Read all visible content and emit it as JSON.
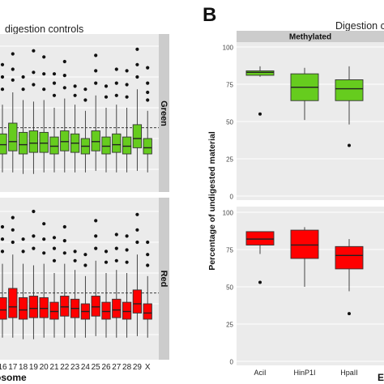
{
  "panel_letter": "B",
  "left_title": "digestion controls",
  "right_title": "Digestion c",
  "left_xlabel": "osome",
  "right_ylabel": "Percentage of undigested material",
  "right_xlabel_partial": "E",
  "chart_data": [
    {
      "type": "boxplot",
      "title": "digestion controls",
      "xlabel": "osome",
      "categories": [
        "16",
        "17",
        "18",
        "19",
        "20",
        "21",
        "22",
        "23",
        "24",
        "25",
        "26",
        "27",
        "28",
        "29",
        "X"
      ],
      "facets": [
        {
          "name": "Green",
          "color": "#66cc1e",
          "reference_line": 0.37,
          "boxes": [
            {
              "q1": 0.2,
              "median": 0.26,
              "q3": 0.33,
              "whisker_low": 0.08,
              "whisker_high": 0.52,
              "outliers": [
                0.62,
                0.7,
                0.78
              ]
            },
            {
              "q1": 0.22,
              "median": 0.28,
              "q3": 0.4,
              "whisker_low": 0.08,
              "whisker_high": 0.6,
              "outliers": [
                0.68,
                0.75,
                0.85
              ]
            },
            {
              "q1": 0.2,
              "median": 0.26,
              "q3": 0.34,
              "whisker_low": 0.07,
              "whisker_high": 0.55,
              "outliers": [
                0.62,
                0.7
              ]
            },
            {
              "q1": 0.21,
              "median": 0.27,
              "q3": 0.35,
              "whisker_low": 0.07,
              "whisker_high": 0.54,
              "outliers": [
                0.65,
                0.73,
                0.87
              ]
            },
            {
              "q1": 0.21,
              "median": 0.27,
              "q3": 0.34,
              "whisker_low": 0.08,
              "whisker_high": 0.55,
              "outliers": [
                0.62,
                0.72,
                0.83
              ]
            },
            {
              "q1": 0.2,
              "median": 0.25,
              "q3": 0.31,
              "whisker_low": 0.08,
              "whisker_high": 0.5,
              "outliers": [
                0.58,
                0.66,
                0.72
              ]
            },
            {
              "q1": 0.22,
              "median": 0.28,
              "q3": 0.35,
              "whisker_low": 0.08,
              "whisker_high": 0.56,
              "outliers": [
                0.63,
                0.71,
                0.8
              ]
            },
            {
              "q1": 0.21,
              "median": 0.27,
              "q3": 0.33,
              "whisker_low": 0.08,
              "whisker_high": 0.52,
              "outliers": [
                0.58,
                0.64
              ]
            },
            {
              "q1": 0.2,
              "median": 0.25,
              "q3": 0.3,
              "whisker_low": 0.08,
              "whisker_high": 0.48,
              "outliers": [
                0.55,
                0.62
              ]
            },
            {
              "q1": 0.22,
              "median": 0.28,
              "q3": 0.35,
              "whisker_low": 0.09,
              "whisker_high": 0.58,
              "outliers": [
                0.66,
                0.74,
                0.84
              ]
            },
            {
              "q1": 0.2,
              "median": 0.25,
              "q3": 0.31,
              "whisker_low": 0.08,
              "whisker_high": 0.5,
              "outliers": [
                0.57,
                0.64
              ]
            },
            {
              "q1": 0.21,
              "median": 0.26,
              "q3": 0.33,
              "whisker_low": 0.08,
              "whisker_high": 0.52,
              "outliers": [
                0.58,
                0.66,
                0.75
              ]
            },
            {
              "q1": 0.2,
              "median": 0.25,
              "q3": 0.31,
              "whisker_low": 0.08,
              "whisker_high": 0.5,
              "outliers": [
                0.57,
                0.65,
                0.74
              ]
            },
            {
              "q1": 0.24,
              "median": 0.3,
              "q3": 0.39,
              "whisker_low": 0.09,
              "whisker_high": 0.62,
              "outliers": [
                0.7,
                0.78,
                0.88
              ]
            },
            {
              "q1": 0.2,
              "median": 0.24,
              "q3": 0.3,
              "whisker_low": 0.08,
              "whisker_high": 0.48,
              "outliers": [
                0.55,
                0.6,
                0.66,
                0.76
              ]
            }
          ]
        },
        {
          "name": "Red",
          "color": "#ff0000",
          "reference_line": 0.37,
          "boxes": [
            {
              "q1": 0.2,
              "median": 0.26,
              "q3": 0.34,
              "whisker_low": 0.08,
              "whisker_high": 0.56,
              "outliers": [
                0.64,
                0.72,
                0.8
              ]
            },
            {
              "q1": 0.21,
              "median": 0.28,
              "q3": 0.4,
              "whisker_low": 0.08,
              "whisker_high": 0.62,
              "outliers": [
                0.7,
                0.78,
                0.86
              ]
            },
            {
              "q1": 0.2,
              "median": 0.26,
              "q3": 0.34,
              "whisker_low": 0.07,
              "whisker_high": 0.56,
              "outliers": [
                0.64,
                0.72
              ]
            },
            {
              "q1": 0.21,
              "median": 0.27,
              "q3": 0.35,
              "whisker_low": 0.07,
              "whisker_high": 0.55,
              "outliers": [
                0.66,
                0.74,
                0.9
              ]
            },
            {
              "q1": 0.21,
              "median": 0.27,
              "q3": 0.34,
              "whisker_low": 0.08,
              "whisker_high": 0.56,
              "outliers": [
                0.63,
                0.72,
                0.82
              ]
            },
            {
              "q1": 0.2,
              "median": 0.25,
              "q3": 0.31,
              "whisker_low": 0.08,
              "whisker_high": 0.5,
              "outliers": [
                0.58,
                0.66,
                0.73
              ]
            },
            {
              "q1": 0.22,
              "median": 0.28,
              "q3": 0.35,
              "whisker_low": 0.08,
              "whisker_high": 0.56,
              "outliers": [
                0.63,
                0.71,
                0.8
              ]
            },
            {
              "q1": 0.21,
              "median": 0.27,
              "q3": 0.33,
              "whisker_low": 0.08,
              "whisker_high": 0.52,
              "outliers": [
                0.58,
                0.64
              ]
            },
            {
              "q1": 0.2,
              "median": 0.25,
              "q3": 0.3,
              "whisker_low": 0.08,
              "whisker_high": 0.48,
              "outliers": [
                0.55,
                0.62
              ]
            },
            {
              "q1": 0.22,
              "median": 0.28,
              "q3": 0.35,
              "whisker_low": 0.09,
              "whisker_high": 0.58,
              "outliers": [
                0.66,
                0.74,
                0.84
              ]
            },
            {
              "q1": 0.2,
              "median": 0.25,
              "q3": 0.31,
              "whisker_low": 0.08,
              "whisker_high": 0.5,
              "outliers": [
                0.57,
                0.64
              ]
            },
            {
              "q1": 0.21,
              "median": 0.26,
              "q3": 0.33,
              "whisker_low": 0.08,
              "whisker_high": 0.52,
              "outliers": [
                0.58,
                0.66,
                0.75
              ]
            },
            {
              "q1": 0.2,
              "median": 0.25,
              "q3": 0.31,
              "whisker_low": 0.08,
              "whisker_high": 0.5,
              "outliers": [
                0.57,
                0.65,
                0.74
              ]
            },
            {
              "q1": 0.24,
              "median": 0.3,
              "q3": 0.39,
              "whisker_low": 0.09,
              "whisker_high": 0.62,
              "outliers": [
                0.7,
                0.78,
                0.88
              ]
            },
            {
              "q1": 0.2,
              "median": 0.24,
              "q3": 0.3,
              "whisker_low": 0.08,
              "whisker_high": 0.48,
              "outliers": [
                0.55,
                0.62,
                0.7
              ]
            }
          ]
        }
      ]
    },
    {
      "type": "boxplot",
      "title": "Digestion c",
      "ylabel": "Percentage of undigested material",
      "xlabel": "E",
      "ylim": [
        0,
        100
      ],
      "yticks": [
        0,
        25,
        50,
        75,
        100
      ],
      "categories": [
        "AciI",
        "HinP1I",
        "HpaII"
      ],
      "facets": [
        {
          "name": "Methylated",
          "color": "#66cc1e",
          "boxes": [
            {
              "q1": 81,
              "median": 83,
              "q3": 84,
              "whisker_low": 80,
              "whisker_high": 87,
              "outliers": [
                55
              ]
            },
            {
              "q1": 64,
              "median": 73,
              "q3": 82,
              "whisker_low": 51,
              "whisker_high": 86,
              "outliers": []
            },
            {
              "q1": 64,
              "median": 72,
              "q3": 78,
              "whisker_low": 48,
              "whisker_high": 87,
              "outliers": [
                34
              ]
            }
          ]
        },
        {
          "name": "",
          "color": "#ff0000",
          "boxes": [
            {
              "q1": 78,
              "median": 82,
              "q3": 87,
              "whisker_low": 72,
              "whisker_high": 87,
              "outliers": [
                53
              ]
            },
            {
              "q1": 69,
              "median": 78,
              "q3": 88,
              "whisker_low": 50,
              "whisker_high": 90,
              "outliers": []
            },
            {
              "q1": 62,
              "median": 71,
              "q3": 77,
              "whisker_low": 47,
              "whisker_high": 82,
              "outliers": [
                32
              ]
            }
          ]
        }
      ]
    }
  ]
}
